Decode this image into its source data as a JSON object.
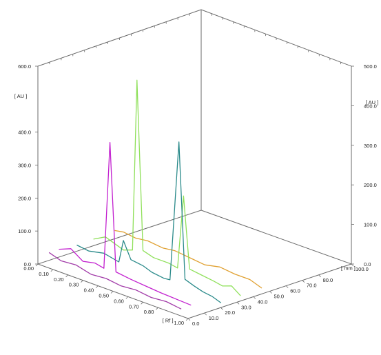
{
  "chart_data": {
    "type": "line",
    "subtype": "3d-waterfall",
    "title": "",
    "x_axis": {
      "label": "[ Rf ]",
      "range": [
        0,
        1
      ],
      "ticks": [
        "0.00",
        "0.10",
        "0.20",
        "0.30",
        "0.40",
        "0.50",
        "0.60",
        "0.70",
        "0.80",
        "1.00"
      ],
      "tick_values": [
        0,
        0.1,
        0.2,
        0.3,
        0.4,
        0.5,
        0.6,
        0.7,
        0.8,
        1.0
      ]
    },
    "y_axis": {
      "label": "[ AU ]",
      "range": [
        0,
        600
      ],
      "ticks": [
        "0.0",
        "100.0",
        "200.0",
        "300.0",
        "400.0",
        "600.0"
      ],
      "tick_values": [
        0,
        100,
        200,
        300,
        400,
        600
      ]
    },
    "y_axis_right": {
      "label": "[ AU ]",
      "ticks": [
        "0.0",
        "100.0",
        "200.0",
        "300.0",
        "400.0",
        "500.0"
      ],
      "tick_values": [
        0,
        100,
        200,
        300,
        400,
        500
      ]
    },
    "z_axis": {
      "label": "[ mm ]",
      "range": [
        0,
        100
      ],
      "ticks": [
        "0.0",
        "10.0",
        "20.0",
        "30.0",
        "40.0",
        "50.0",
        "60.0",
        "70.0",
        "80.0",
        "100.0"
      ],
      "tick_values": [
        0,
        10,
        20,
        30,
        40,
        50,
        60,
        70,
        80,
        100
      ]
    },
    "grid": false,
    "legend": "none",
    "series": [
      {
        "track_mm": 5,
        "color": "#a13aa8",
        "points": [
          [
            0.02,
            30
          ],
          [
            0.1,
            18
          ],
          [
            0.2,
            22
          ],
          [
            0.3,
            10
          ],
          [
            0.4,
            14
          ],
          [
            0.5,
            8
          ],
          [
            0.6,
            12
          ],
          [
            0.7,
            6
          ],
          [
            0.8,
            10
          ],
          [
            0.9,
            4
          ]
        ]
      },
      {
        "track_mm": 11,
        "color": "#c21fcf",
        "points": [
          [
            0.02,
            30
          ],
          [
            0.1,
            45
          ],
          [
            0.18,
            20
          ],
          [
            0.26,
            28
          ],
          [
            0.32,
            22
          ],
          [
            0.36,
            410
          ],
          [
            0.4,
            24
          ],
          [
            0.5,
            18
          ],
          [
            0.6,
            14
          ],
          [
            0.7,
            10
          ],
          [
            0.8,
            8
          ],
          [
            0.9,
            6
          ]
        ]
      },
      {
        "track_mm": 22,
        "color": "#2a8a8a",
        "points": [
          [
            0.02,
            25
          ],
          [
            0.1,
            20
          ],
          [
            0.2,
            30
          ],
          [
            0.3,
            20
          ],
          [
            0.33,
            90
          ],
          [
            0.38,
            40
          ],
          [
            0.46,
            35
          ],
          [
            0.52,
            25
          ],
          [
            0.6,
            20
          ],
          [
            0.64,
            22
          ],
          [
            0.7,
            450
          ],
          [
            0.74,
            40
          ],
          [
            0.8,
            30
          ],
          [
            0.86,
            22
          ],
          [
            0.92,
            18
          ],
          [
            0.98,
            8
          ]
        ]
      },
      {
        "track_mm": 34,
        "color": "#8fe05a",
        "points": [
          [
            0.0,
            20
          ],
          [
            0.08,
            40
          ],
          [
            0.14,
            30
          ],
          [
            0.2,
            20
          ],
          [
            0.26,
            30
          ],
          [
            0.29,
            550
          ],
          [
            0.33,
            40
          ],
          [
            0.4,
            30
          ],
          [
            0.5,
            30
          ],
          [
            0.56,
            25
          ],
          [
            0.6,
            250
          ],
          [
            0.64,
            35
          ],
          [
            0.72,
            30
          ],
          [
            0.8,
            25
          ],
          [
            0.86,
            20
          ],
          [
            0.92,
            30
          ],
          [
            0.98,
            10
          ]
        ]
      },
      {
        "track_mm": 47,
        "color": "#e0a030",
        "points": [
          [
            0.0,
            25
          ],
          [
            0.06,
            30
          ],
          [
            0.14,
            25
          ],
          [
            0.22,
            30
          ],
          [
            0.32,
            25
          ],
          [
            0.4,
            30
          ],
          [
            0.5,
            25
          ],
          [
            0.6,
            20
          ],
          [
            0.7,
            30
          ],
          [
            0.8,
            25
          ],
          [
            0.9,
            25
          ],
          [
            0.98,
            12
          ]
        ]
      }
    ]
  }
}
